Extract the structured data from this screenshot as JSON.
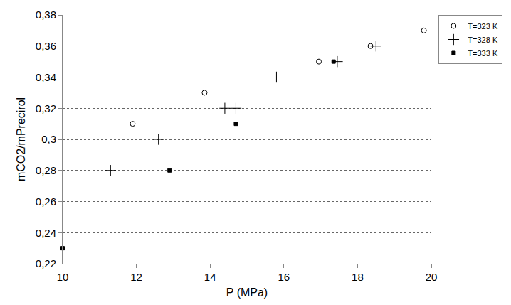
{
  "chart_data": {
    "type": "scatter",
    "x_label": "P (MPa)",
    "y_label": "mCO2/mPrecirol",
    "xlim": [
      10,
      20
    ],
    "xticks": [
      10,
      12,
      14,
      16,
      18,
      20
    ],
    "ylim": [
      0.22,
      0.38
    ],
    "yticks": [
      {
        "value": 0.22,
        "label": "0,22"
      },
      {
        "value": 0.24,
        "label": "0,24"
      },
      {
        "value": 0.26,
        "label": "0,26"
      },
      {
        "value": 0.28,
        "label": "0,28"
      },
      {
        "value": 0.3,
        "label": "0,3"
      },
      {
        "value": 0.32,
        "label": "0,32"
      },
      {
        "value": 0.34,
        "label": "0,34"
      },
      {
        "value": 0.36,
        "label": "0,36"
      },
      {
        "value": 0.38,
        "label": "0,38"
      }
    ],
    "grid": true,
    "legend": "top right",
    "series": [
      {
        "name": "T=323 K",
        "color": "#000000",
        "marker": "circle-open",
        "x": [
          11.9,
          13.85,
          16.95,
          18.35,
          19.8
        ],
        "values": [
          0.31,
          0.33,
          0.35,
          0.36,
          0.37
        ]
      },
      {
        "name": "T=328 K",
        "color": "#000000",
        "marker": "cross-thin-open",
        "x": [
          11.3,
          12.6,
          14.4,
          14.7,
          15.8,
          17.45,
          18.5
        ],
        "values": [
          0.28,
          0.3,
          0.32,
          0.32,
          0.34,
          0.35,
          0.36
        ]
      },
      {
        "name": "T=333 K",
        "color": "#000000",
        "marker": "square",
        "x": [
          10.0,
          12.9,
          14.7,
          17.35
        ],
        "values": [
          0.23,
          0.28,
          0.31,
          0.35
        ]
      }
    ]
  }
}
